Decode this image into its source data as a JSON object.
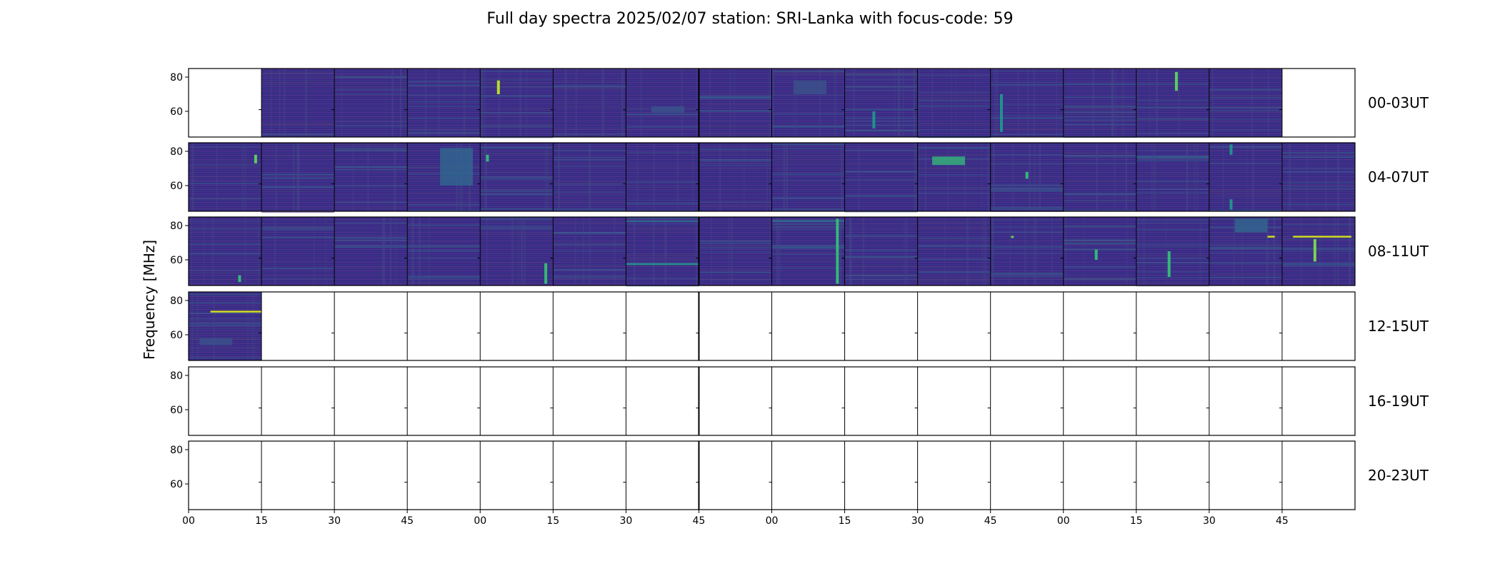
{
  "figure": {
    "title": "Full day spectra 2025/02/07 station: SRI-Lanka with focus-code: 59",
    "ylabel": "Frequency [MHz]"
  },
  "colors": {
    "background_dark": "#440154",
    "panel_base": "#3b2a86",
    "mid": "#31688e",
    "bright": "#35b779",
    "hot": "#fde725",
    "empty": "#ffffff"
  },
  "chart_data": {
    "type": "heatmap",
    "colormap": "viridis",
    "ylim_mhz": [
      45,
      85
    ],
    "yticks": [
      "80",
      "60"
    ],
    "ytick_values": [
      80,
      60
    ],
    "xticks": [
      "00",
      "15",
      "30",
      "45",
      "00",
      "15",
      "30",
      "45",
      "00",
      "15",
      "30",
      "45",
      "00",
      "15",
      "30",
      "45"
    ],
    "panels_per_row": 16,
    "panel_minutes": 15,
    "rows": [
      {
        "label": "00-03UT",
        "filled": [
          false,
          true,
          true,
          true,
          true,
          true,
          true,
          true,
          true,
          true,
          true,
          true,
          true,
          true,
          true,
          false
        ],
        "features": [
          {
            "panel": 4,
            "type": "burst",
            "pos": 0.25,
            "f_lo": 70,
            "f_hi": 78,
            "color": "#b5de2b"
          },
          {
            "panel": 6,
            "type": "block",
            "pos": 0.6,
            "f_lo": 59,
            "f_hi": 63,
            "color": "#3b528b"
          },
          {
            "panel": 8,
            "type": "block",
            "pos": 0.55,
            "f_lo": 70,
            "f_hi": 78,
            "color": "#3b528b"
          },
          {
            "panel": 9,
            "type": "burst",
            "pos": 0.4,
            "f_lo": 50,
            "f_hi": 60,
            "color": "#21918c"
          },
          {
            "panel": 11,
            "type": "burst",
            "pos": 0.15,
            "f_lo": 48,
            "f_hi": 70,
            "color": "#21918c"
          },
          {
            "panel": 13,
            "type": "burst",
            "pos": 0.55,
            "f_lo": 72,
            "f_hi": 83,
            "color": "#5ec962"
          }
        ]
      },
      {
        "label": "04-07UT",
        "filled": [
          true,
          true,
          true,
          true,
          true,
          true,
          true,
          true,
          true,
          true,
          true,
          true,
          true,
          true,
          true,
          true
        ],
        "features": [
          {
            "panel": 0,
            "type": "burst",
            "pos": 0.92,
            "f_lo": 73,
            "f_hi": 78,
            "color": "#5ec962"
          },
          {
            "panel": 3,
            "type": "block",
            "pos": 0.7,
            "f_lo": 60,
            "f_hi": 82,
            "color": "#31688e"
          },
          {
            "panel": 4,
            "type": "burst",
            "pos": 0.1,
            "f_lo": 74,
            "f_hi": 78,
            "color": "#35b779"
          },
          {
            "panel": 10,
            "type": "block",
            "pos": 0.45,
            "f_lo": 72,
            "f_hi": 77,
            "color": "#35b779"
          },
          {
            "panel": 11,
            "type": "burst",
            "pos": 0.5,
            "f_lo": 64,
            "f_hi": 68,
            "color": "#35b779"
          },
          {
            "panel": 14,
            "type": "burst",
            "pos": 0.3,
            "f_lo": 78,
            "f_hi": 84,
            "color": "#21918c"
          },
          {
            "panel": 14,
            "type": "burst",
            "pos": 0.3,
            "f_lo": 46,
            "f_hi": 52,
            "color": "#21918c"
          }
        ]
      },
      {
        "label": "08-11UT",
        "filled": [
          true,
          true,
          true,
          true,
          true,
          true,
          true,
          true,
          true,
          true,
          true,
          true,
          true,
          true,
          true,
          true
        ],
        "features": [
          {
            "panel": 0,
            "type": "burst",
            "pos": 0.7,
            "f_lo": 47,
            "f_hi": 51,
            "color": "#35b779"
          },
          {
            "panel": 4,
            "type": "burst",
            "pos": 0.9,
            "f_lo": 46,
            "f_hi": 58,
            "color": "#35b779"
          },
          {
            "panel": 6,
            "type": "line",
            "pos": 0.5,
            "f_lo": 82,
            "f_hi": 83,
            "color": "#31688e"
          },
          {
            "panel": 6,
            "type": "line",
            "pos": 0.5,
            "f_lo": 57,
            "f_hi": 58,
            "color": "#21918c"
          },
          {
            "panel": 8,
            "type": "line",
            "pos": 0.5,
            "f_lo": 82,
            "f_hi": 83,
            "color": "#31688e"
          },
          {
            "panel": 8,
            "type": "burst",
            "pos": 0.9,
            "f_lo": 46,
            "f_hi": 84,
            "color": "#35b779"
          },
          {
            "panel": 11,
            "type": "burst",
            "pos": 0.3,
            "f_lo": 73,
            "f_hi": 74,
            "color": "#5ec962"
          },
          {
            "panel": 12,
            "type": "burst",
            "pos": 0.45,
            "f_lo": 60,
            "f_hi": 66,
            "color": "#35b779"
          },
          {
            "panel": 13,
            "type": "burst",
            "pos": 0.45,
            "f_lo": 50,
            "f_hi": 65,
            "color": "#35b779"
          },
          {
            "panel": 14,
            "type": "block",
            "pos": 0.6,
            "f_lo": 76,
            "f_hi": 84,
            "color": "#31688e"
          },
          {
            "panel": 14,
            "type": "line",
            "pos": 0.85,
            "f_lo": 73,
            "f_hi": 74,
            "color": "#d8e219"
          },
          {
            "panel": 15,
            "type": "line",
            "pos": 0.5,
            "f_lo": 73,
            "f_hi": 74,
            "color": "#d8e219"
          },
          {
            "panel": 15,
            "type": "burst",
            "pos": 0.45,
            "f_lo": 59,
            "f_hi": 72,
            "color": "#7ad151"
          }
        ]
      },
      {
        "label": "12-15UT",
        "filled": [
          true,
          false,
          false,
          false,
          false,
          false,
          false,
          false,
          false,
          false,
          false,
          false,
          false,
          false,
          false,
          false
        ],
        "features": [
          {
            "panel": 0,
            "type": "line",
            "pos": 0.6,
            "f_lo": 73,
            "f_hi": 74,
            "color": "#d8e219"
          },
          {
            "panel": 0,
            "type": "block",
            "pos": 0.4,
            "f_lo": 54,
            "f_hi": 58,
            "color": "#3b528b"
          }
        ]
      },
      {
        "label": "16-19UT",
        "filled": [
          false,
          false,
          false,
          false,
          false,
          false,
          false,
          false,
          false,
          false,
          false,
          false,
          false,
          false,
          false,
          false
        ],
        "features": []
      },
      {
        "label": "20-23UT",
        "filled": [
          false,
          false,
          false,
          false,
          false,
          false,
          false,
          false,
          false,
          false,
          false,
          false,
          false,
          false,
          false,
          false
        ],
        "features": []
      }
    ]
  }
}
